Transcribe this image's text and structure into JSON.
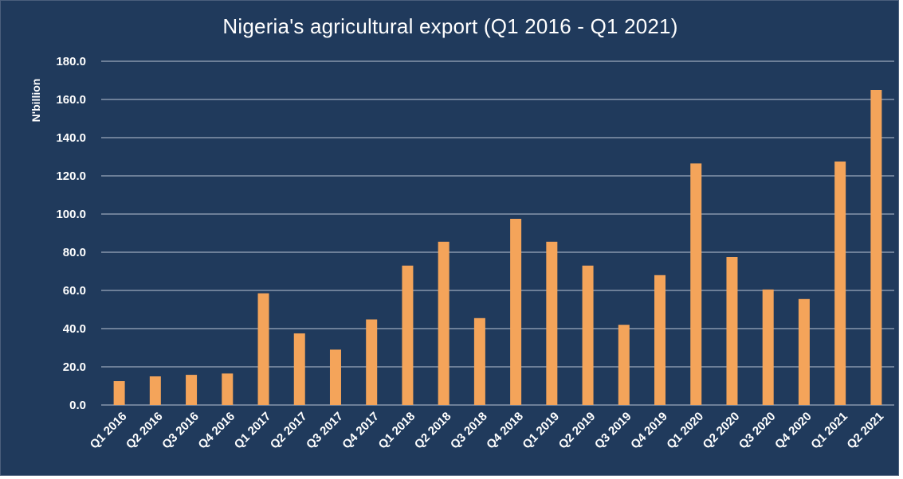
{
  "chart_data": {
    "type": "bar",
    "title": "Nigeria's agricultural export (Q1 2016 - Q1 2021)",
    "xlabel": "",
    "ylabel": "N'billion",
    "ylim": [
      0,
      180
    ],
    "ytick_labels": [
      "0.0",
      "20.0",
      "40.0",
      "60.0",
      "80.0",
      "100.0",
      "120.0",
      "140.0",
      "160.0",
      "180.0"
    ],
    "grid": true,
    "legend": "none",
    "categories": [
      "Q1 2016",
      "Q2 2016",
      "Q3 2016",
      "Q4 2016",
      "Q1 2017",
      "Q2 2017",
      "Q3 2017",
      "Q4 2017",
      "Q1 2018",
      "Q2 2018",
      "Q3 2018",
      "Q4 2018",
      "Q1 2019",
      "Q2 2019",
      "Q3 2019",
      "Q4 2019",
      "Q1 2020",
      "Q2 2020",
      "Q3 2020",
      "Q4 2020",
      "Q1 2021",
      "Q2 2021"
    ],
    "values": [
      12.5,
      15.0,
      15.8,
      16.5,
      58.5,
      37.5,
      29.0,
      44.8,
      73.0,
      85.5,
      45.5,
      97.5,
      85.5,
      73.0,
      42.0,
      68.0,
      126.5,
      77.5,
      60.5,
      55.5,
      127.5,
      165.0
    ],
    "colors": {
      "background": "#203a5c",
      "bar": "#f4a45a",
      "text": "#ffffff",
      "grid": "#d6dde8"
    }
  }
}
